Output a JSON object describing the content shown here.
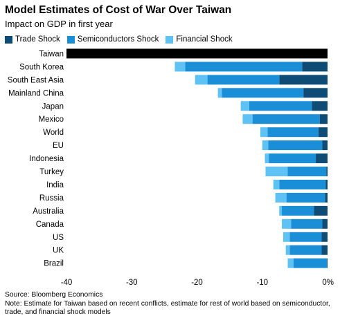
{
  "title": "Model Estimates of Cost of War Over Taiwan",
  "subtitle": "Impact on GDP in first year",
  "legend": [
    {
      "name": "Trade Shock",
      "color": "#0f4c75"
    },
    {
      "name": "Semiconductors Shock",
      "color": "#1a8fd8"
    },
    {
      "name": "Financial Shock",
      "color": "#5ec2f5"
    }
  ],
  "source": "Source: Bloomberg Economics",
  "note": "Note: Estimate for Taiwan based on recent conflicts, estimate for rest of world based on semiconductor, trade, and financial shock models",
  "chart_data": {
    "type": "bar",
    "orientation": "horizontal",
    "stacked": true,
    "xlabel": "",
    "ylabel": "",
    "xlim": [
      -40,
      0
    ],
    "xticks": [
      -40,
      -30,
      -20,
      -10,
      0
    ],
    "xtick_labels": [
      "-40",
      "-30",
      "-20",
      "-10",
      "0%"
    ],
    "categories": [
      "Taiwan",
      "South Korea",
      "South East Asia",
      "Mainland China",
      "Japan",
      "Mexico",
      "World",
      "EU",
      "Indonesia",
      "Turkey",
      "India",
      "Russia",
      "Australia",
      "Canada",
      "US",
      "UK",
      "Brazil"
    ],
    "total_color_taiwan": "#000000",
    "taiwan_total": -40,
    "series": [
      {
        "name": "Trade Shock",
        "color": "#0f4c75",
        "values": [
          null,
          -3.9,
          -7.4,
          -3.7,
          -2.4,
          -1.2,
          -1.4,
          -0.8,
          -1.8,
          -0.2,
          -0.3,
          -0.4,
          -2.1,
          -0.8,
          -0.9,
          -0.9,
          -0.1
        ]
      },
      {
        "name": "Semiconductors Shock",
        "color": "#1a8fd8",
        "values": [
          null,
          -17.9,
          -11.0,
          -12.5,
          -9.6,
          -10.3,
          -7.8,
          -8.3,
          -7.2,
          -5.9,
          -7.1,
          -5.9,
          -4.9,
          -4.8,
          -4.9,
          -4.9,
          -5.1
        ]
      },
      {
        "name": "Financial Shock",
        "color": "#5ec2f5",
        "values": [
          null,
          -1.6,
          -1.9,
          -0.6,
          -1.3,
          -1.5,
          -1.1,
          -0.9,
          -0.6,
          -3.4,
          -0.9,
          -1.7,
          -0.4,
          -1.4,
          -1.0,
          -0.6,
          -0.9
        ]
      }
    ],
    "grid": false,
    "legend_position": "top-left"
  }
}
